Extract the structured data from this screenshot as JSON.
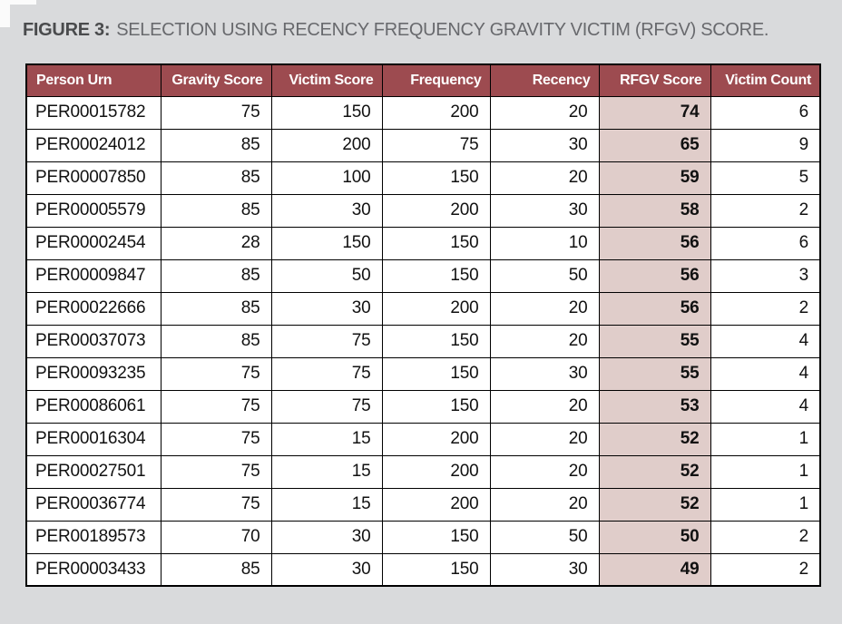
{
  "title": {
    "label": "FIGURE 3:",
    "text": "SELECTION USING RECENCY FREQUENCY GRAVITY VICTIM (RFGV) SCORE."
  },
  "chart_data": {
    "type": "table",
    "title": "FIGURE 3: SELECTION USING RECENCY FREQUENCY GRAVITY VICTIM (RFGV) SCORE.",
    "columns": [
      "Person Urn",
      "Gravity Score",
      "Victim Score",
      "Frequency",
      "Recency",
      "RFGV Score",
      "Victim Count"
    ],
    "rows": [
      [
        "PER00015782",
        75,
        150,
        200,
        20,
        74,
        6
      ],
      [
        "PER00024012",
        85,
        200,
        75,
        30,
        65,
        9
      ],
      [
        "PER00007850",
        85,
        100,
        150,
        20,
        59,
        5
      ],
      [
        "PER00005579",
        85,
        30,
        200,
        30,
        58,
        2
      ],
      [
        "PER00002454",
        28,
        150,
        150,
        10,
        56,
        6
      ],
      [
        "PER00009847",
        85,
        50,
        150,
        50,
        56,
        3
      ],
      [
        "PER00022666",
        85,
        30,
        200,
        20,
        56,
        2
      ],
      [
        "PER00037073",
        85,
        75,
        150,
        20,
        55,
        4
      ],
      [
        "PER00093235",
        75,
        75,
        150,
        30,
        55,
        4
      ],
      [
        "PER00086061",
        75,
        75,
        150,
        20,
        53,
        4
      ],
      [
        "PER00016304",
        75,
        15,
        200,
        20,
        52,
        1
      ],
      [
        "PER00027501",
        75,
        15,
        200,
        20,
        52,
        1
      ],
      [
        "PER00036774",
        75,
        15,
        200,
        20,
        52,
        1
      ],
      [
        "PER00189573",
        70,
        30,
        150,
        50,
        50,
        2
      ],
      [
        "PER00003433",
        85,
        30,
        150,
        30,
        49,
        2
      ]
    ],
    "highlight_column": "RFGV Score"
  },
  "colors": {
    "page_bg": "#d9dadc",
    "header_bg": "#9d4b50",
    "header_text": "#ffffff",
    "rfgv_column_bg": "#e0cdca",
    "border": "#000000",
    "title_label": "#4a4b4d",
    "title_text": "#68696d"
  }
}
